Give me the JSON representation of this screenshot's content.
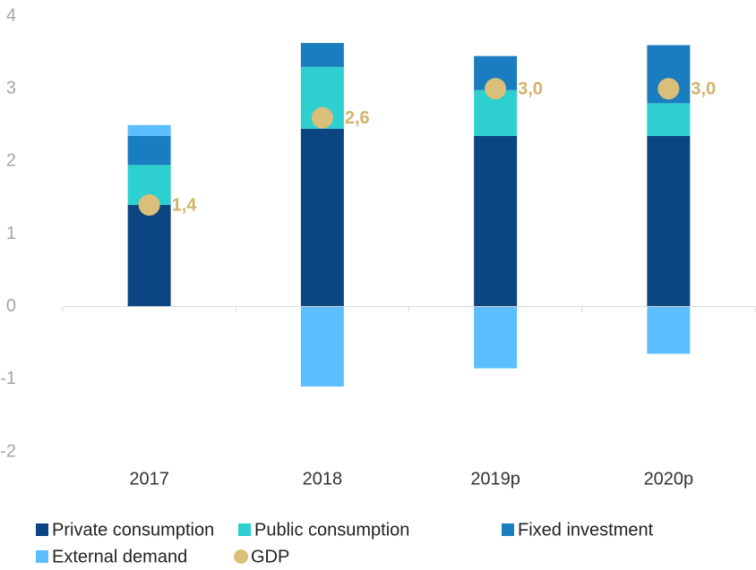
{
  "chart_data": {
    "type": "stacked_bar_with_dots",
    "categories": [
      "2017",
      "2018",
      "2019p",
      "2020p"
    ],
    "series": [
      {
        "name": "Private consumption",
        "color": "#0b4582",
        "values": [
          1.4,
          2.45,
          2.35,
          2.35
        ]
      },
      {
        "name": "Public consumption",
        "color": "#2ecfcf",
        "values": [
          0.55,
          0.85,
          0.63,
          0.45
        ]
      },
      {
        "name": "Fixed investment",
        "color": "#1a7dc0",
        "values": [
          0.4,
          0.33,
          0.47,
          0.8
        ]
      },
      {
        "name": "External demand",
        "color": "#5bbfff",
        "values": [
          0.15,
          -1.1,
          -0.85,
          -0.65
        ]
      },
      {
        "name": "GDP",
        "color": "#d9bf7a",
        "type": "dot",
        "values": [
          1.4,
          2.6,
          3.0,
          3.0
        ],
        "value_labels": [
          "1,4",
          "2,6",
          "3,0",
          "3,0"
        ]
      }
    ],
    "ylim": [
      -2,
      4
    ],
    "yticks": [
      -2,
      -1,
      0,
      1,
      2,
      3,
      4
    ],
    "grid": false,
    "legend": "bottom"
  }
}
